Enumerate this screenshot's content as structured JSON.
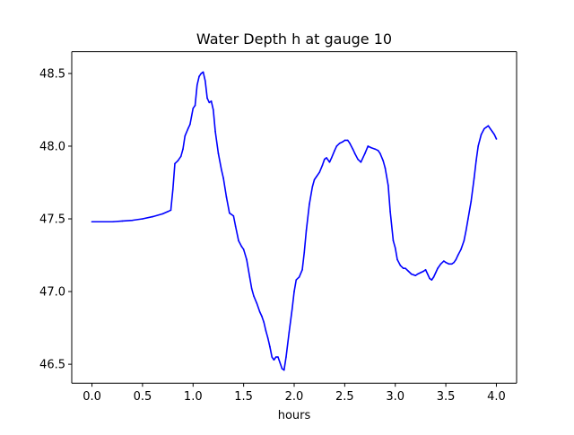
{
  "chart_data": {
    "type": "line",
    "title": "Water Depth h at gauge 10",
    "xlabel": "hours",
    "ylabel": "",
    "xlim": [
      -0.2,
      4.2
    ],
    "ylim": [
      46.37,
      48.65
    ],
    "xticks": [
      "0.0",
      "0.5",
      "1.0",
      "1.5",
      "2.0",
      "2.5",
      "3.0",
      "3.5",
      "4.0"
    ],
    "yticks": [
      "46.5",
      "47.0",
      "47.5",
      "48.0",
      "48.5"
    ],
    "grid": false,
    "legend": "none",
    "series": [
      {
        "color": "#0000ff",
        "x": [
          0.0,
          0.1,
          0.2,
          0.3,
          0.4,
          0.5,
          0.6,
          0.7,
          0.75,
          0.78,
          0.8,
          0.82,
          0.85,
          0.88,
          0.9,
          0.92,
          0.95,
          0.97,
          1.0,
          1.02,
          1.04,
          1.06,
          1.08,
          1.1,
          1.12,
          1.14,
          1.16,
          1.18,
          1.2,
          1.22,
          1.25,
          1.28,
          1.3,
          1.33,
          1.36,
          1.38,
          1.4,
          1.42,
          1.45,
          1.48,
          1.5,
          1.53,
          1.56,
          1.58,
          1.6,
          1.63,
          1.66,
          1.68,
          1.7,
          1.72,
          1.74,
          1.76,
          1.78,
          1.8,
          1.82,
          1.84,
          1.86,
          1.88,
          1.9,
          1.92,
          1.95,
          1.98,
          2.0,
          2.02,
          2.05,
          2.08,
          2.1,
          2.12,
          2.15,
          2.18,
          2.2,
          2.22,
          2.25,
          2.28,
          2.3,
          2.32,
          2.35,
          2.37,
          2.4,
          2.42,
          2.45,
          2.48,
          2.5,
          2.53,
          2.55,
          2.58,
          2.6,
          2.63,
          2.66,
          2.7,
          2.73,
          2.76,
          2.8,
          2.83,
          2.85,
          2.88,
          2.9,
          2.93,
          2.95,
          2.98,
          3.0,
          3.02,
          3.05,
          3.08,
          3.1,
          3.13,
          3.16,
          3.18,
          3.2,
          3.22,
          3.25,
          3.28,
          3.3,
          3.32,
          3.34,
          3.36,
          3.38,
          3.4,
          3.42,
          3.45,
          3.48,
          3.5,
          3.53,
          3.56,
          3.58,
          3.6,
          3.62,
          3.65,
          3.68,
          3.7,
          3.72,
          3.75,
          3.78,
          3.8,
          3.82,
          3.85,
          3.88,
          3.9,
          3.92,
          3.94,
          3.96,
          3.98,
          4.0
        ],
        "y": [
          47.48,
          47.48,
          47.48,
          47.485,
          47.49,
          47.5,
          47.515,
          47.535,
          47.55,
          47.56,
          47.7,
          47.88,
          47.9,
          47.93,
          47.98,
          48.07,
          48.12,
          48.15,
          48.26,
          48.28,
          48.42,
          48.48,
          48.5,
          48.51,
          48.45,
          48.33,
          48.3,
          48.31,
          48.25,
          48.1,
          47.95,
          47.84,
          47.78,
          47.65,
          47.54,
          47.53,
          47.52,
          47.45,
          47.35,
          47.31,
          47.29,
          47.22,
          47.1,
          47.02,
          46.97,
          46.92,
          46.86,
          46.83,
          46.79,
          46.73,
          46.68,
          46.62,
          46.55,
          46.53,
          46.55,
          46.55,
          46.51,
          46.47,
          46.46,
          46.55,
          46.72,
          46.88,
          47.0,
          47.08,
          47.1,
          47.15,
          47.27,
          47.42,
          47.6,
          47.72,
          47.77,
          47.79,
          47.82,
          47.87,
          47.91,
          47.92,
          47.89,
          47.92,
          47.97,
          48.0,
          48.02,
          48.03,
          48.04,
          48.04,
          48.02,
          47.98,
          47.95,
          47.91,
          47.89,
          47.95,
          48.0,
          47.99,
          47.98,
          47.97,
          47.95,
          47.9,
          47.85,
          47.73,
          47.55,
          47.35,
          47.3,
          47.22,
          47.18,
          47.16,
          47.16,
          47.14,
          47.12,
          47.115,
          47.11,
          47.12,
          47.13,
          47.14,
          47.15,
          47.12,
          47.09,
          47.08,
          47.1,
          47.13,
          47.16,
          47.19,
          47.21,
          47.2,
          47.19,
          47.19,
          47.2,
          47.22,
          47.25,
          47.29,
          47.35,
          47.42,
          47.5,
          47.62,
          47.78,
          47.9,
          48.0,
          48.08,
          48.12,
          48.13,
          48.14,
          48.12,
          48.1,
          48.08,
          48.05
        ]
      }
    ]
  }
}
